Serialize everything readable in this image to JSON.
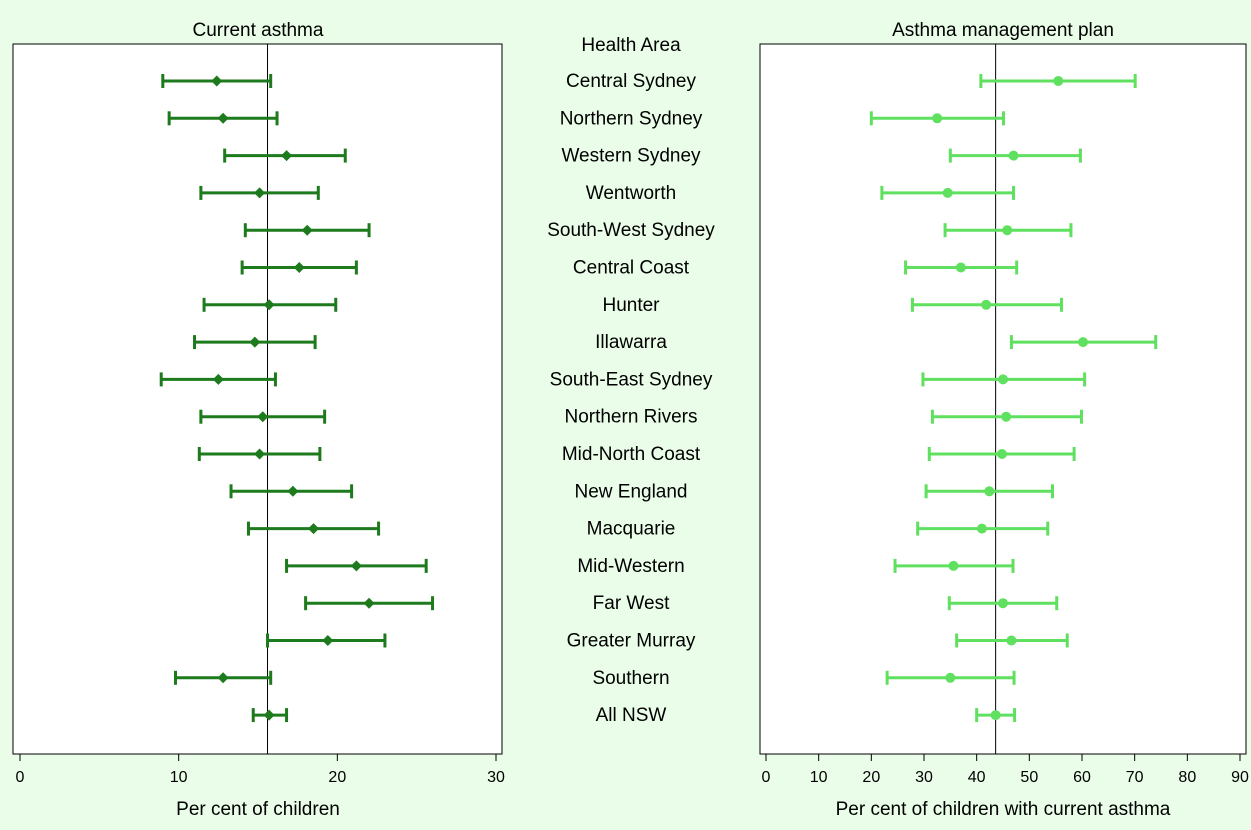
{
  "chart_data": [
    {
      "type": "errorbar",
      "title": "Current asthma",
      "xlabel": "Per cent of children",
      "xlim": [
        0,
        30
      ],
      "xticks": [
        0,
        10,
        20,
        30
      ],
      "reference_line": 15.6,
      "marker": "diamond",
      "color": "#1d7a1d",
      "categories_header": "Health Area",
      "categories": [
        "Central Sydney",
        "Northern Sydney",
        "Western Sydney",
        "Wentworth",
        "South-West Sydney",
        "Central Coast",
        "Hunter",
        "Illawarra",
        "South-East Sydney",
        "Northern Rivers",
        "Mid-North Coast",
        "New England",
        "Macquarie",
        "Mid-Western",
        "Far West",
        "Greater Murray",
        "Southern",
        "All NSW"
      ],
      "estimate": [
        12.4,
        12.8,
        16.8,
        15.1,
        18.1,
        17.6,
        15.7,
        14.8,
        12.5,
        15.3,
        15.1,
        17.2,
        18.5,
        21.2,
        22.0,
        19.4,
        12.8,
        15.7
      ],
      "lower": [
        9.0,
        9.4,
        12.9,
        11.4,
        14.2,
        14.0,
        11.6,
        11.0,
        8.9,
        11.4,
        11.3,
        13.3,
        14.4,
        16.8,
        18.0,
        15.6,
        9.8,
        14.7
      ],
      "upper": [
        15.8,
        16.2,
        20.5,
        18.8,
        22.0,
        21.2,
        19.9,
        18.6,
        16.1,
        19.2,
        18.9,
        20.9,
        22.6,
        25.6,
        26.0,
        23.0,
        15.8,
        16.8
      ]
    },
    {
      "type": "errorbar",
      "title": "Asthma management plan",
      "xlabel": "Per cent of children with current asthma",
      "xlim": [
        0,
        90
      ],
      "xticks": [
        0,
        10,
        20,
        30,
        40,
        50,
        60,
        70,
        80,
        90
      ],
      "reference_line": 43.6,
      "marker": "circle",
      "color": "#5fe05f",
      "categories": [
        "Central Sydney",
        "Northern Sydney",
        "Western Sydney",
        "Wentworth",
        "South-West Sydney",
        "Central Coast",
        "Hunter",
        "Illawarra",
        "South-East Sydney",
        "Northern Rivers",
        "Mid-North Coast",
        "New England",
        "Macquarie",
        "Mid-Western",
        "Far West",
        "Greater Murray",
        "Southern",
        "All NSW"
      ],
      "estimate": [
        55.5,
        32.5,
        47.0,
        34.5,
        45.8,
        37.0,
        41.8,
        60.2,
        45.0,
        45.6,
        44.8,
        42.4,
        41.0,
        35.6,
        45.0,
        46.6,
        35.0,
        43.6
      ],
      "lower": [
        40.8,
        20.0,
        35.0,
        22.0,
        34.0,
        26.5,
        27.8,
        46.6,
        29.8,
        31.6,
        31.0,
        30.4,
        28.8,
        24.5,
        34.8,
        36.2,
        23.0,
        40.0
      ],
      "upper": [
        70.1,
        45.1,
        59.7,
        47.0,
        57.9,
        47.6,
        56.1,
        74.0,
        60.5,
        59.9,
        58.5,
        54.4,
        53.5,
        46.9,
        55.2,
        57.2,
        47.1,
        47.2
      ]
    }
  ]
}
